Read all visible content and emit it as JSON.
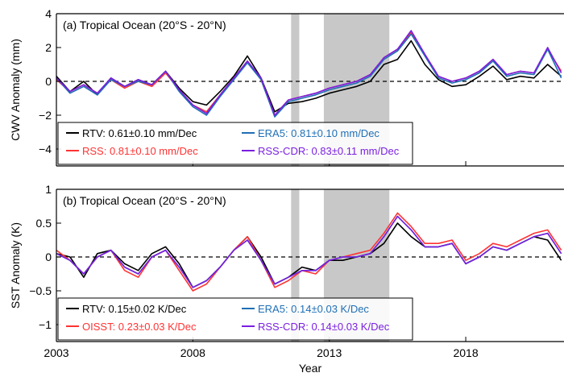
{
  "x_axis": {
    "label": "Year",
    "xlim": [
      2003,
      2021.6
    ],
    "ticks": [
      2003,
      2008,
      2013,
      2018
    ],
    "tick_labels": [
      "2003",
      "2008",
      "2013",
      "2018"
    ]
  },
  "shading": {
    "color": "#c8c8c8",
    "periods": [
      [
        2011.6,
        2011.9
      ],
      [
        2012.8,
        2015.2
      ]
    ]
  },
  "chart_data": [
    {
      "type": "line",
      "panel_label": "(a) Tropical Ocean (20°S - 20°N)",
      "ylabel": "CWV Anomaly (mm)",
      "ylim": [
        -5,
        4
      ],
      "yticks": [
        -4,
        -2,
        0,
        2,
        4
      ],
      "ytick_labels": [
        "−4",
        "−2",
        "0",
        "2",
        "4"
      ],
      "zero_line": "dashed",
      "legend_placement": "bottom-left",
      "x": [
        2003.0,
        2003.5,
        2004.0,
        2004.5,
        2005.0,
        2005.5,
        2006.0,
        2006.5,
        2007.0,
        2007.5,
        2008.0,
        2008.5,
        2009.0,
        2009.5,
        2010.0,
        2010.5,
        2011.0,
        2011.5,
        2012.0,
        2012.5,
        2013.0,
        2013.5,
        2014.0,
        2014.5,
        2015.0,
        2015.5,
        2016.0,
        2016.5,
        2017.0,
        2017.5,
        2018.0,
        2018.5,
        2019.0,
        2019.5,
        2020.0,
        2020.5,
        2021.0,
        2021.5
      ],
      "series": [
        {
          "name": "RTV",
          "trend": "0.61±0.10 mm/Dec",
          "color": "#000000",
          "values": [
            0.3,
            -0.6,
            0.0,
            -0.8,
            0.2,
            -0.3,
            0.1,
            -0.2,
            0.6,
            -0.4,
            -1.2,
            -1.4,
            -0.6,
            0.3,
            1.5,
            0.2,
            -1.8,
            -1.3,
            -1.2,
            -1.0,
            -0.7,
            -0.5,
            -0.3,
            0.0,
            1.0,
            1.3,
            2.4,
            1.0,
            0.1,
            -0.3,
            -0.2,
            0.3,
            0.9,
            0.1,
            0.3,
            0.2,
            1.0,
            0.3
          ]
        },
        {
          "name": "RSS",
          "trend": "0.81±0.10 mm/Dec",
          "color": "#ff3333",
          "values": [
            0.1,
            -0.6,
            -0.2,
            -0.7,
            0.1,
            -0.4,
            0.0,
            -0.3,
            0.5,
            -0.5,
            -1.4,
            -1.8,
            -0.8,
            0.2,
            1.2,
            0.1,
            -2.0,
            -1.1,
            -0.9,
            -0.7,
            -0.4,
            -0.2,
            0.0,
            0.4,
            1.4,
            1.9,
            2.9,
            1.6,
            0.3,
            0.0,
            0.2,
            0.6,
            1.3,
            0.4,
            0.6,
            0.5,
            1.9,
            0.6
          ]
        },
        {
          "name": "ERA5",
          "trend": "0.81±0.10 mm/Dec",
          "color": "#1f6fb5",
          "values": [
            0.2,
            -0.7,
            -0.3,
            -0.8,
            0.1,
            -0.3,
            0.0,
            -0.2,
            0.6,
            -0.6,
            -1.5,
            -2.0,
            -0.9,
            0.1,
            1.1,
            0.1,
            -2.1,
            -1.2,
            -1.0,
            -0.8,
            -0.5,
            -0.3,
            -0.1,
            0.3,
            1.3,
            1.8,
            2.8,
            1.5,
            0.2,
            -0.1,
            0.1,
            0.5,
            1.2,
            0.3,
            0.5,
            0.4,
            1.9,
            0.2
          ]
        },
        {
          "name": "RSS-CDR",
          "trend": "0.83±0.11 mm/Dec",
          "color": "#7a1fe0",
          "values": [
            0.2,
            -0.6,
            -0.2,
            -0.7,
            0.2,
            -0.3,
            0.1,
            -0.2,
            0.6,
            -0.5,
            -1.4,
            -1.9,
            -0.8,
            0.2,
            1.2,
            0.2,
            -2.0,
            -1.1,
            -0.9,
            -0.7,
            -0.4,
            -0.2,
            0.0,
            0.4,
            1.4,
            1.9,
            3.0,
            1.6,
            0.3,
            0.0,
            0.2,
            0.6,
            1.3,
            0.4,
            0.6,
            0.5,
            2.0,
            0.5
          ]
        }
      ]
    },
    {
      "type": "line",
      "panel_label": "(b) Tropical Ocean (20°S - 20°N)",
      "ylabel": "SST Anomaly (K)",
      "ylim": [
        -1.25,
        1
      ],
      "yticks": [
        -1,
        -0.5,
        0,
        0.5,
        1
      ],
      "ytick_labels": [
        "−1",
        "−0.5",
        "0",
        "0.5",
        "1"
      ],
      "zero_line": "dashed",
      "legend_placement": "bottom-left",
      "x": [
        2003.0,
        2003.5,
        2004.0,
        2004.5,
        2005.0,
        2005.5,
        2006.0,
        2006.5,
        2007.0,
        2007.5,
        2008.0,
        2008.5,
        2009.0,
        2009.5,
        2010.0,
        2010.5,
        2011.0,
        2011.5,
        2012.0,
        2012.5,
        2013.0,
        2013.5,
        2014.0,
        2014.5,
        2015.0,
        2015.5,
        2016.0,
        2016.5,
        2017.0,
        2017.5,
        2018.0,
        2018.5,
        2019.0,
        2019.5,
        2020.0,
        2020.5,
        2021.0,
        2021.5
      ],
      "series": [
        {
          "name": "RTV",
          "trend": "0.15±0.02 K/Dec",
          "color": "#000000",
          "values": [
            0.05,
            0.0,
            -0.3,
            0.05,
            0.1,
            -0.1,
            -0.2,
            0.05,
            0.15,
            -0.1,
            -0.45,
            -0.35,
            -0.15,
            0.1,
            0.3,
            0.0,
            -0.4,
            -0.3,
            -0.15,
            -0.2,
            -0.05,
            -0.05,
            0.0,
            0.05,
            0.2,
            0.5,
            0.3,
            0.15,
            0.15,
            0.2,
            -0.1,
            0.0,
            0.15,
            0.1,
            0.2,
            0.3,
            0.25,
            -0.05
          ]
        },
        {
          "name": "OISST",
          "trend": "0.23±0.03 K/Dec",
          "color": "#ff3333",
          "values": [
            0.1,
            -0.05,
            -0.25,
            0.0,
            0.1,
            -0.2,
            -0.3,
            0.0,
            0.1,
            -0.2,
            -0.5,
            -0.4,
            -0.15,
            0.1,
            0.3,
            -0.05,
            -0.45,
            -0.35,
            -0.2,
            -0.25,
            -0.05,
            0.0,
            0.05,
            0.1,
            0.35,
            0.65,
            0.45,
            0.2,
            0.2,
            0.25,
            -0.05,
            0.05,
            0.2,
            0.15,
            0.25,
            0.35,
            0.4,
            0.1
          ]
        },
        {
          "name": "ERA5",
          "trend": "0.14±0.03 K/Dec",
          "color": "#1f6fb5",
          "values": [
            0.05,
            -0.05,
            -0.25,
            0.0,
            0.1,
            -0.15,
            -0.25,
            0.0,
            0.1,
            -0.15,
            -0.45,
            -0.35,
            -0.15,
            0.1,
            0.25,
            -0.05,
            -0.4,
            -0.3,
            -0.2,
            -0.2,
            -0.05,
            0.0,
            0.0,
            0.05,
            0.3,
            0.6,
            0.4,
            0.15,
            0.15,
            0.2,
            -0.1,
            0.0,
            0.15,
            0.1,
            0.2,
            0.3,
            0.35,
            0.05
          ]
        },
        {
          "name": "RSS-CDR",
          "trend": "0.14±0.03 K/Dec",
          "color": "#7a1fe0",
          "values": [
            0.05,
            -0.05,
            -0.25,
            0.0,
            0.1,
            -0.15,
            -0.25,
            0.0,
            0.1,
            -0.15,
            -0.45,
            -0.35,
            -0.15,
            0.1,
            0.25,
            -0.05,
            -0.4,
            -0.3,
            -0.2,
            -0.2,
            -0.05,
            0.0,
            0.0,
            0.05,
            0.3,
            0.6,
            0.4,
            0.15,
            0.15,
            0.2,
            -0.1,
            0.0,
            0.15,
            0.1,
            0.2,
            0.3,
            0.35,
            0.05
          ]
        }
      ]
    }
  ]
}
